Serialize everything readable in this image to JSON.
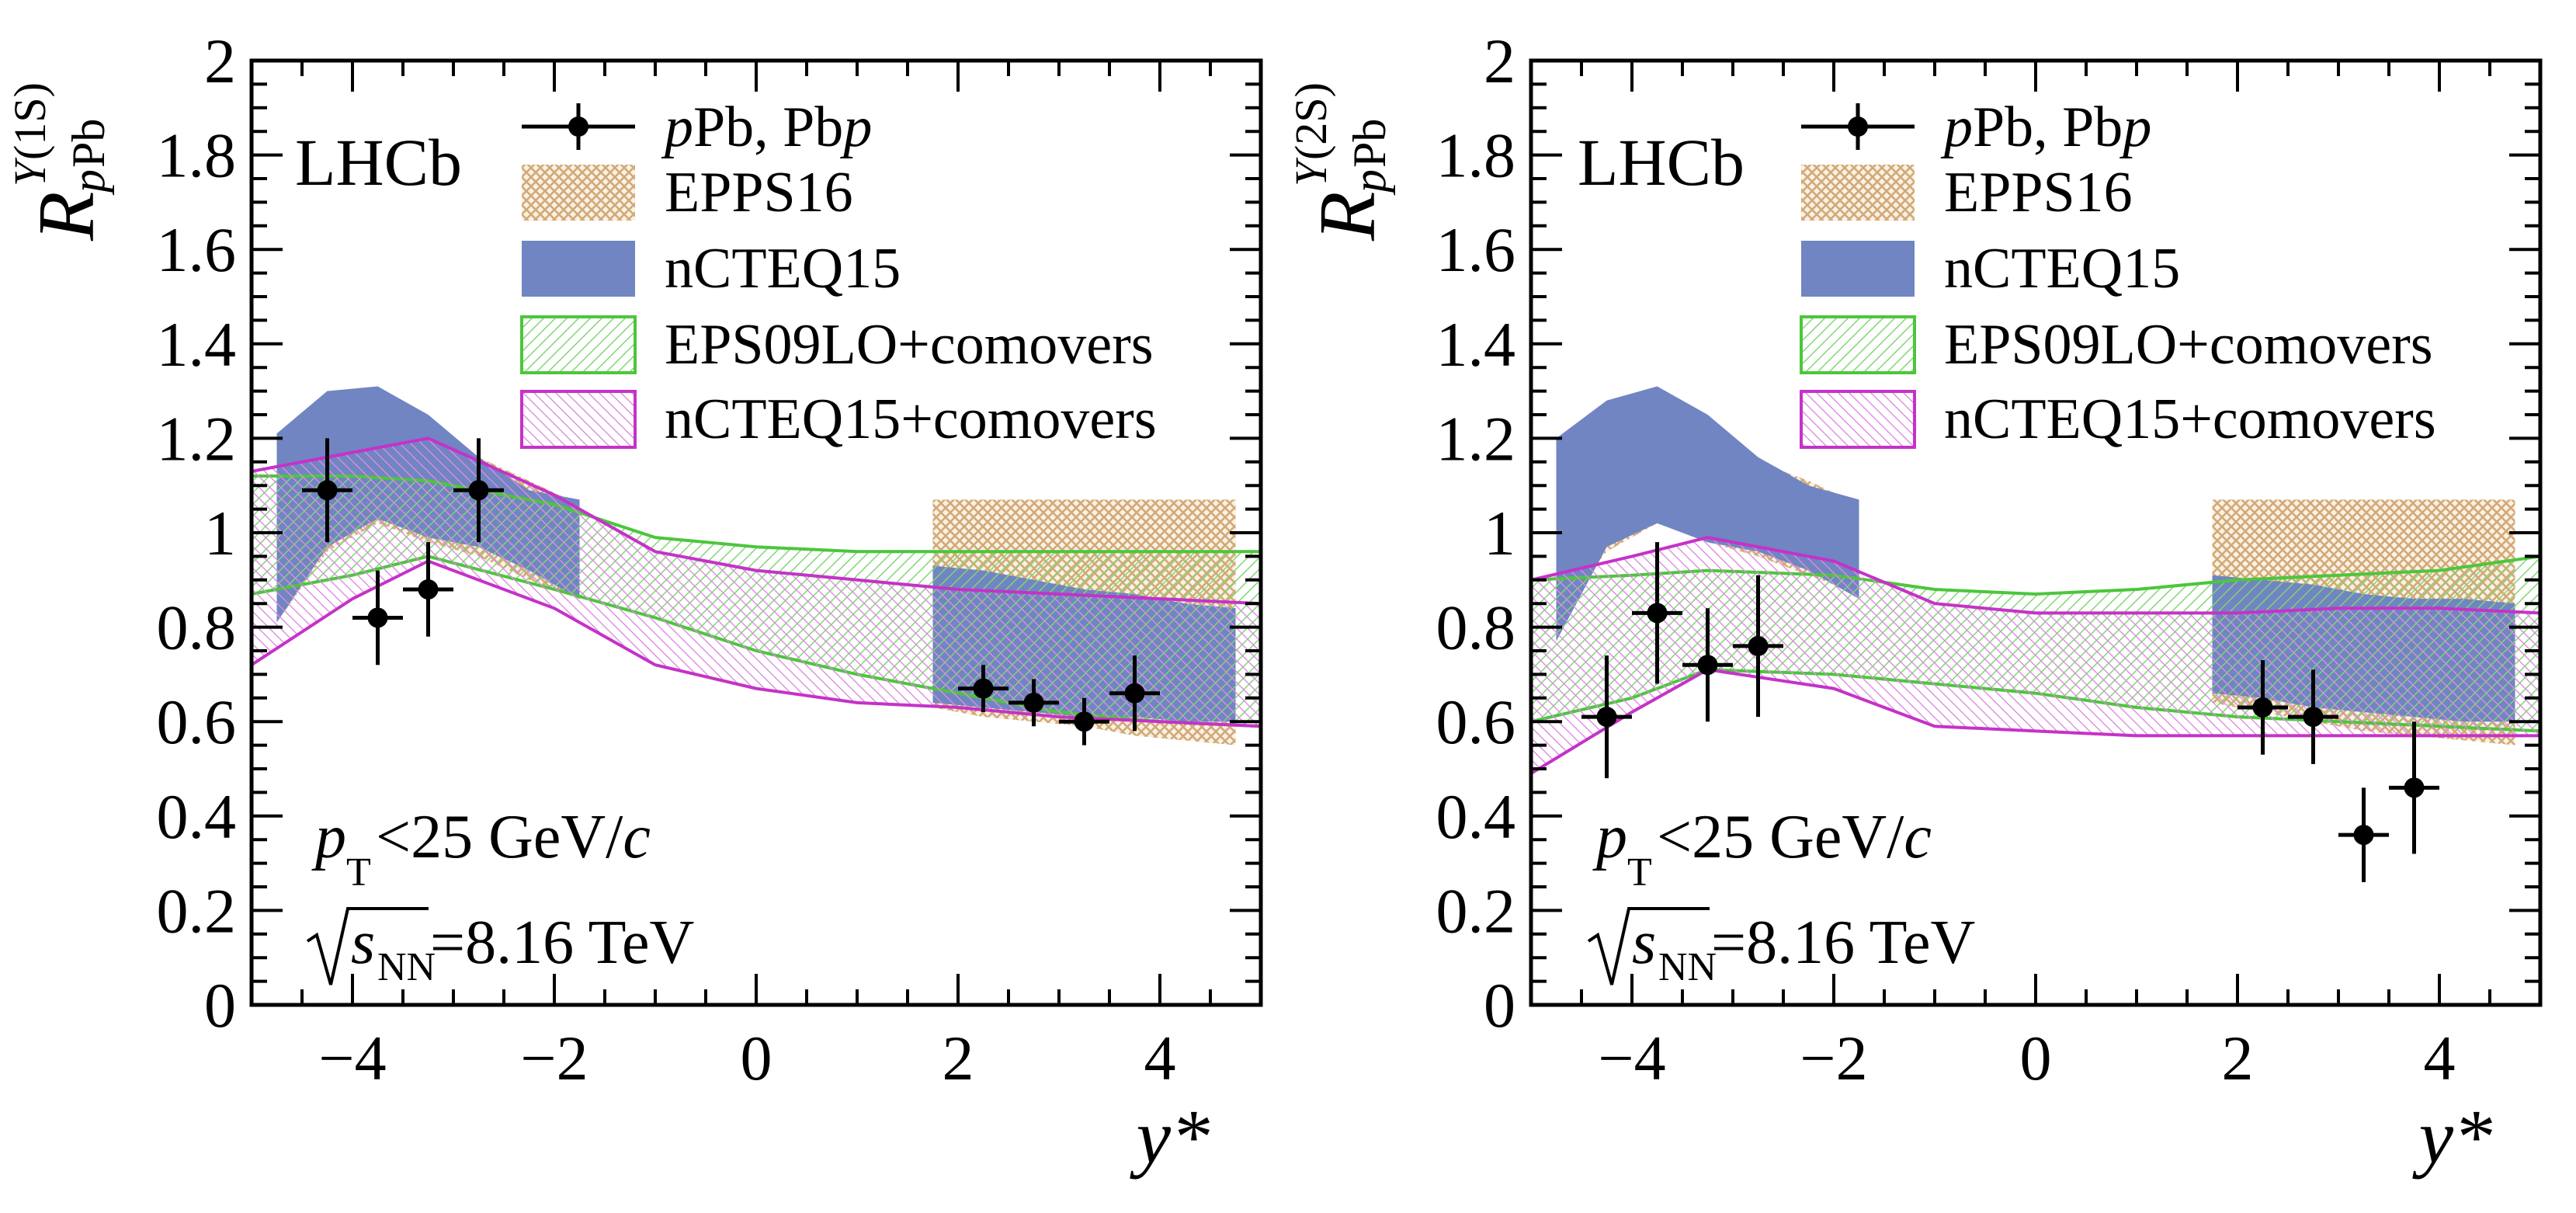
{
  "colors": {
    "epps16": "#d2aa78",
    "nCTEQ15": "#7085c2",
    "eps09_comovers": "#4cc63c",
    "nCTEQ15_comovers": "#c532c8",
    "data": "#000000"
  },
  "chart_data": [
    {
      "type": "line",
      "title": "",
      "experiment": "LHCb",
      "xlabel": "y*",
      "ylabel": {
        "base": "R",
        "sub_italic": "p",
        "sub_rest": "Pb",
        "sup_symbol": "Υ",
        "sup_state": "(1S)"
      },
      "xlim": [
        -5,
        5
      ],
      "ylim": [
        0,
        2
      ],
      "xticks": [
        -4,
        -2,
        0,
        2,
        4
      ],
      "xtick_labels": [
        "−4",
        "−2",
        "0",
        "2",
        "4"
      ],
      "yticks": [
        0,
        0.2,
        0.4,
        0.6,
        0.8,
        1,
        1.2,
        1.4,
        1.6,
        1.8,
        2
      ],
      "ytick_labels": [
        "0",
        "0.2",
        "0.4",
        "0.6",
        "0.8",
        "1",
        "1.2",
        "1.4",
        "1.6",
        "1.8",
        "2"
      ],
      "conditions": {
        "pt_sym": "p",
        "pt_sub": "T",
        "pt_text": "<25 GeV/",
        "pt_unit": "c",
        "energy_sym": "s",
        "energy_sub": "NN",
        "energy_text": "=8.16 TeV"
      },
      "legend": {
        "data": {
          "italic1": "p",
          "text1": "Pb, Pb",
          "italic2": "p"
        },
        "epps16": "EPPS16",
        "nCTEQ15": "nCTEQ15",
        "eps09_comovers": "EPS09LO+comovers",
        "nCTEQ15_comovers": "nCTEQ15+comovers"
      },
      "series": [
        {
          "name": "EPPS16",
          "kind": "band",
          "x": [
            -4.75,
            -4.25,
            -3.75,
            -3.25,
            -2.75,
            -2.25,
            -1.75
          ],
          "upper": [
            1.17,
            1.21,
            1.22,
            1.19,
            1.16,
            1.11,
            1.06
          ],
          "lower": [
            0.81,
            0.96,
            1.02,
            0.98,
            0.95,
            0.9,
            0.86
          ]
        },
        {
          "name": "EPPS16",
          "kind": "band",
          "x": [
            1.75,
            2.25,
            2.75,
            3.25,
            3.75,
            4.25,
            4.75
          ],
          "upper": [
            1.07,
            1.07,
            1.07,
            1.07,
            1.07,
            1.07,
            1.07
          ],
          "lower": [
            0.63,
            0.61,
            0.6,
            0.59,
            0.57,
            0.56,
            0.55
          ]
        },
        {
          "name": "nCTEQ15",
          "kind": "band",
          "x": [
            -4.75,
            -4.25,
            -3.75,
            -3.25,
            -2.75,
            -2.25,
            -1.75
          ],
          "upper": [
            1.21,
            1.3,
            1.31,
            1.25,
            1.16,
            1.09,
            1.07
          ],
          "lower": [
            0.81,
            0.97,
            1.03,
            0.99,
            0.97,
            0.92,
            0.86
          ]
        },
        {
          "name": "nCTEQ15",
          "kind": "band",
          "x": [
            1.75,
            2.25,
            2.75,
            3.25,
            3.75,
            4.25,
            4.75
          ],
          "upper": [
            0.93,
            0.92,
            0.9,
            0.88,
            0.87,
            0.85,
            0.84
          ],
          "lower": [
            0.64,
            0.63,
            0.62,
            0.61,
            0.61,
            0.6,
            0.6
          ]
        },
        {
          "name": "EPS09LO+comovers",
          "kind": "band",
          "x": [
            -5,
            -4,
            -3.25,
            -2,
            -1,
            0,
            1,
            2,
            3,
            4,
            5
          ],
          "upper": [
            1.12,
            1.12,
            1.11,
            1.06,
            0.99,
            0.97,
            0.96,
            0.96,
            0.96,
            0.96,
            0.96
          ],
          "lower": [
            0.87,
            0.91,
            0.95,
            0.88,
            0.82,
            0.75,
            0.7,
            0.66,
            0.62,
            0.6,
            0.59
          ]
        },
        {
          "name": "nCTEQ15+comovers",
          "kind": "band",
          "x": [
            -5,
            -4,
            -3.25,
            -2,
            -1,
            0,
            1,
            2,
            3,
            4,
            5
          ],
          "upper": [
            1.13,
            1.17,
            1.2,
            1.08,
            0.96,
            0.92,
            0.9,
            0.88,
            0.87,
            0.86,
            0.85
          ],
          "lower": [
            0.72,
            0.86,
            0.94,
            0.84,
            0.72,
            0.67,
            0.64,
            0.63,
            0.61,
            0.6,
            0.59
          ]
        },
        {
          "name": "pPb, Pbp",
          "kind": "points",
          "x": [
            -4.25,
            -3.75,
            -3.25,
            -2.75,
            2.25,
            2.75,
            3.25,
            3.75
          ],
          "y": [
            1.09,
            0.82,
            0.88,
            1.09,
            0.67,
            0.64,
            0.6,
            0.66
          ],
          "xerr": [
            0.25,
            0.25,
            0.25,
            0.25,
            0.25,
            0.25,
            0.25,
            0.25
          ],
          "yerr": [
            0.11,
            0.1,
            0.1,
            0.11,
            0.05,
            0.05,
            0.05,
            0.08
          ]
        }
      ]
    },
    {
      "type": "line",
      "title": "",
      "experiment": "LHCb",
      "xlabel": "y*",
      "ylabel": {
        "base": "R",
        "sub_italic": "p",
        "sub_rest": "Pb",
        "sup_symbol": "Υ",
        "sup_state": "(2S)"
      },
      "xlim": [
        -5,
        5
      ],
      "ylim": [
        0,
        2
      ],
      "xticks": [
        -4,
        -2,
        0,
        2,
        4
      ],
      "xtick_labels": [
        "−4",
        "−2",
        "0",
        "2",
        "4"
      ],
      "yticks": [
        0,
        0.2,
        0.4,
        0.6,
        0.8,
        1,
        1.2,
        1.4,
        1.6,
        1.8,
        2
      ],
      "ytick_labels": [
        "0",
        "0.2",
        "0.4",
        "0.6",
        "0.8",
        "1",
        "1.2",
        "1.4",
        "1.6",
        "1.8",
        "2"
      ],
      "conditions": {
        "pt_sym": "p",
        "pt_sub": "T",
        "pt_text": "<25 GeV/",
        "pt_unit": "c",
        "energy_sym": "s",
        "energy_sub": "NN",
        "energy_text": "=8.16 TeV"
      },
      "legend": {
        "data": {
          "italic1": "p",
          "text1": "Pb, Pb",
          "italic2": "p"
        },
        "epps16": "EPPS16",
        "nCTEQ15": "nCTEQ15",
        "eps09_comovers": "EPS09LO+comovers",
        "nCTEQ15_comovers": "nCTEQ15+comovers"
      },
      "series": [
        {
          "name": "EPPS16",
          "kind": "band",
          "x": [
            -4.75,
            -4.25,
            -3.75,
            -3.25,
            -2.75,
            -2.25,
            -1.75
          ],
          "upper": [
            1.18,
            1.21,
            1.22,
            1.19,
            1.15,
            1.11,
            1.06
          ],
          "lower": [
            0.82,
            0.96,
            1.02,
            0.98,
            0.95,
            0.91,
            0.87
          ]
        },
        {
          "name": "EPPS16",
          "kind": "band",
          "x": [
            1.75,
            2.25,
            2.75,
            3.25,
            3.75,
            4.25,
            4.75
          ],
          "upper": [
            1.07,
            1.07,
            1.07,
            1.07,
            1.07,
            1.07,
            1.07
          ],
          "lower": [
            0.64,
            0.62,
            0.6,
            0.58,
            0.57,
            0.56,
            0.55
          ]
        },
        {
          "name": "nCTEQ15",
          "kind": "band",
          "x": [
            -4.75,
            -4.25,
            -3.75,
            -3.25,
            -2.75,
            -2.25,
            -1.75
          ],
          "upper": [
            1.2,
            1.28,
            1.31,
            1.25,
            1.16,
            1.1,
            1.07
          ],
          "lower": [
            0.77,
            0.97,
            1.02,
            0.98,
            0.96,
            0.92,
            0.86
          ]
        },
        {
          "name": "nCTEQ15",
          "kind": "band",
          "x": [
            1.75,
            2.25,
            2.75,
            3.25,
            3.75,
            4.25,
            4.75
          ],
          "upper": [
            0.91,
            0.9,
            0.89,
            0.87,
            0.86,
            0.86,
            0.85
          ],
          "lower": [
            0.66,
            0.65,
            0.63,
            0.62,
            0.61,
            0.6,
            0.6
          ]
        },
        {
          "name": "EPS09LO+comovers",
          "kind": "band",
          "x": [
            -5,
            -4,
            -3.25,
            -2,
            -1,
            0,
            1,
            2,
            3,
            4,
            5
          ],
          "upper": [
            0.9,
            0.91,
            0.92,
            0.91,
            0.88,
            0.87,
            0.88,
            0.9,
            0.91,
            0.92,
            0.95
          ],
          "lower": [
            0.6,
            0.65,
            0.71,
            0.7,
            0.68,
            0.66,
            0.63,
            0.61,
            0.6,
            0.59,
            0.58
          ]
        },
        {
          "name": "nCTEQ15+comovers",
          "kind": "band",
          "x": [
            -5,
            -4,
            -3.25,
            -2,
            -1,
            0,
            1,
            2,
            3,
            4,
            5
          ],
          "upper": [
            0.9,
            0.95,
            0.99,
            0.94,
            0.85,
            0.83,
            0.83,
            0.83,
            0.84,
            0.84,
            0.83
          ],
          "lower": [
            0.49,
            0.62,
            0.71,
            0.67,
            0.59,
            0.58,
            0.57,
            0.57,
            0.57,
            0.57,
            0.57
          ]
        },
        {
          "name": "pPb, Pbp",
          "kind": "points",
          "x": [
            -4.25,
            -3.75,
            -3.25,
            -2.75,
            2.25,
            2.75,
            3.25,
            3.75
          ],
          "y": [
            0.61,
            0.83,
            0.72,
            0.76,
            0.63,
            0.61,
            0.36,
            0.46
          ],
          "xerr": [
            0.25,
            0.25,
            0.25,
            0.25,
            0.25,
            0.25,
            0.25,
            0.25
          ],
          "yerr": [
            0.13,
            0.15,
            0.12,
            0.15,
            0.1,
            0.1,
            0.1,
            0.14
          ]
        }
      ]
    }
  ]
}
